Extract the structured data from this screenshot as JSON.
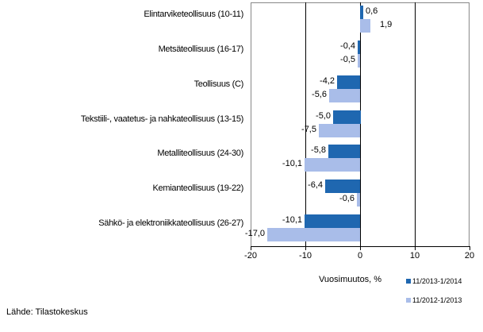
{
  "chart_data": {
    "type": "bar",
    "orientation": "horizontal",
    "title": "",
    "xlabel": "Vuosimuutos, %",
    "ylabel": "",
    "xlim": [
      -20,
      20
    ],
    "x_ticks": [
      -20,
      -10,
      0,
      10,
      20
    ],
    "x_tick_labels": [
      "-20",
      "-10",
      "0",
      "10",
      "20"
    ],
    "grid": "vertical major gridlines at -10, 0, 10",
    "legend_position": "bottom-right",
    "categories": [
      "Elintarviketeollisuus (10-11)",
      "Metsäteollisuus (16-17)",
      "Teollisuus (C)",
      "Tekstiili-, vaatetus- ja nahkateollisuus (13-15)",
      "Metalliteollisuus (24-30)",
      "Kemianteollisuus (19-22)",
      "Sähkö- ja elektroniikkateollisuus (26-27)"
    ],
    "series": [
      {
        "name": "11/2013-1/2014",
        "color": "#1f67b0",
        "values": [
          0.6,
          -0.4,
          -4.2,
          -5.0,
          -5.8,
          -6.4,
          -10.1
        ],
        "labels": [
          "0,6",
          "-0,4",
          "-4,2",
          "-5,0",
          "-5,8",
          "-6,4",
          "-10,1"
        ]
      },
      {
        "name": "11/2012-1/2013",
        "color": "#a9bde9",
        "values": [
          1.9,
          -0.5,
          -5.6,
          -7.5,
          -10.1,
          -0.6,
          -17.0
        ],
        "labels": [
          "1,9",
          "-0,5",
          "-5,6",
          "-7,5",
          "-10,1",
          "-0,6",
          "-17,0"
        ]
      }
    ],
    "source": "Lähde: Tilastokeskus"
  },
  "legend": {
    "items": [
      {
        "label": "11/2013-1/2014",
        "color": "#1f67b0"
      },
      {
        "label": "11/2012-1/2013",
        "color": "#a9bde9"
      }
    ]
  },
  "axis": {
    "xlabel": "Vuosimuutos, %",
    "ticks": [
      "-20",
      "-10",
      "0",
      "10",
      "20"
    ]
  },
  "source": "Lähde: Tilastokeskus"
}
